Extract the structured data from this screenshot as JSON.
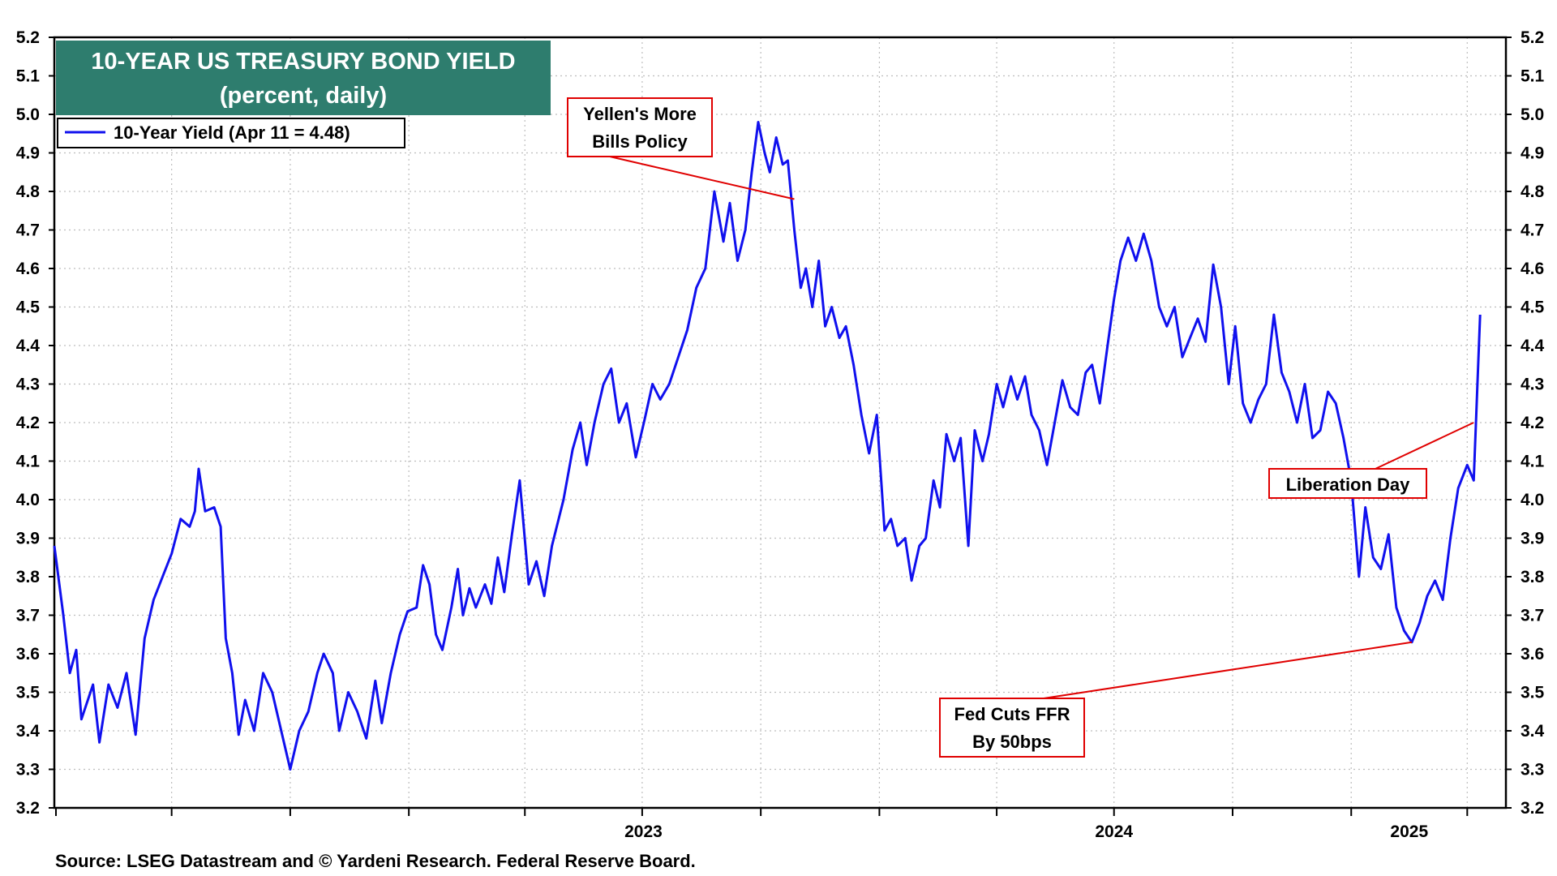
{
  "title": "10-YEAR US TREASURY BOND YIELD",
  "subtitle": "(percent, daily)",
  "source": "Source: LSEG Datastream and © Yardeni Research. Federal Reserve Board.",
  "colors": {
    "line": "#1010ee",
    "title_bg": "#2e7d6e",
    "annotation_border": "#e00000",
    "grid": "#bdbdbd"
  },
  "chart_data": {
    "type": "line",
    "ylim": [
      3.2,
      5.2
    ],
    "yticks": [
      "3.2",
      "3.3",
      "3.4",
      "3.5",
      "3.6",
      "3.7",
      "3.8",
      "3.9",
      "4.0",
      "4.1",
      "4.2",
      "4.3",
      "4.4",
      "4.5",
      "4.6",
      "4.7",
      "4.8",
      "4.9",
      "5.0",
      "5.1",
      "5.2"
    ],
    "xlim": [
      "2022-04-01",
      "2025-05-01"
    ],
    "quarter_gridlines": [
      "2022-07-01",
      "2022-10-01",
      "2023-01-01",
      "2023-04-01",
      "2023-07-01",
      "2023-10-01",
      "2024-01-01",
      "2024-04-01",
      "2024-07-01",
      "2024-10-01",
      "2025-01-01",
      "2025-04-01"
    ],
    "year_labels": [
      {
        "label": "2023",
        "date": "2023-01-01"
      },
      {
        "label": "2024",
        "date": "2024-01-01"
      },
      {
        "label": "2025",
        "date": "2025-01-01"
      }
    ],
    "legend": "top-left",
    "series": [
      {
        "name": "10-Year Yield (Apr 11 = 4.48)",
        "points": [
          [
            "2022-04-01",
            3.88
          ],
          [
            "2022-04-08",
            3.7
          ],
          [
            "2022-04-13",
            3.55
          ],
          [
            "2022-04-18",
            3.61
          ],
          [
            "2022-04-22",
            3.43
          ],
          [
            "2022-05-01",
            3.52
          ],
          [
            "2022-05-06",
            3.37
          ],
          [
            "2022-05-13",
            3.52
          ],
          [
            "2022-05-20",
            3.46
          ],
          [
            "2022-05-27",
            3.55
          ],
          [
            "2022-06-03",
            3.39
          ],
          [
            "2022-06-10",
            3.64
          ],
          [
            "2022-06-17",
            3.74
          ],
          [
            "2022-06-24",
            3.8
          ],
          [
            "2022-07-01",
            3.86
          ],
          [
            "2022-07-08",
            3.95
          ],
          [
            "2022-07-15",
            3.93
          ],
          [
            "2022-07-19",
            3.97
          ],
          [
            "2022-07-22",
            4.08
          ],
          [
            "2022-07-27",
            3.97
          ],
          [
            "2022-08-03",
            3.98
          ],
          [
            "2022-08-08",
            3.93
          ],
          [
            "2022-08-12",
            3.64
          ],
          [
            "2022-08-17",
            3.55
          ],
          [
            "2022-08-22",
            3.39
          ],
          [
            "2022-08-27",
            3.48
          ],
          [
            "2022-09-03",
            3.4
          ],
          [
            "2022-09-10",
            3.55
          ],
          [
            "2022-09-17",
            3.5
          ],
          [
            "2022-09-24",
            3.4
          ],
          [
            "2022-10-01",
            3.3
          ],
          [
            "2022-10-08",
            3.4
          ],
          [
            "2022-10-15",
            3.45
          ],
          [
            "2022-10-22",
            3.55
          ],
          [
            "2022-10-27",
            3.6
          ],
          [
            "2022-11-03",
            3.55
          ],
          [
            "2022-11-08",
            3.4
          ],
          [
            "2022-11-15",
            3.5
          ],
          [
            "2022-11-22",
            3.45
          ],
          [
            "2022-11-29",
            3.38
          ],
          [
            "2022-12-06",
            3.53
          ],
          [
            "2022-12-11",
            3.42
          ],
          [
            "2022-12-18",
            3.55
          ],
          [
            "2022-12-25",
            3.65
          ],
          [
            "2022-12-31",
            3.71
          ],
          [
            "2023-01-07",
            3.72
          ],
          [
            "2023-01-12",
            3.83
          ],
          [
            "2023-01-17",
            3.78
          ],
          [
            "2023-01-22",
            3.65
          ],
          [
            "2023-01-27",
            3.61
          ],
          [
            "2023-02-03",
            3.72
          ],
          [
            "2023-02-08",
            3.82
          ],
          [
            "2023-02-12",
            3.7
          ],
          [
            "2023-02-17",
            3.77
          ],
          [
            "2023-02-22",
            3.72
          ],
          [
            "2023-03-01",
            3.78
          ],
          [
            "2023-03-06",
            3.73
          ],
          [
            "2023-03-11",
            3.85
          ],
          [
            "2023-03-16",
            3.76
          ],
          [
            "2023-03-22",
            3.91
          ],
          [
            "2023-03-28",
            4.05
          ],
          [
            "2023-04-04",
            3.78
          ],
          [
            "2023-04-10",
            3.84
          ],
          [
            "2023-04-16",
            3.75
          ],
          [
            "2023-04-22",
            3.88
          ],
          [
            "2023-05-01",
            4.0
          ],
          [
            "2023-05-08",
            4.13
          ],
          [
            "2023-05-14",
            4.2
          ],
          [
            "2023-05-19",
            4.09
          ],
          [
            "2023-05-25",
            4.2
          ],
          [
            "2023-06-01",
            4.3
          ],
          [
            "2023-06-07",
            4.34
          ],
          [
            "2023-06-13",
            4.2
          ],
          [
            "2023-06-19",
            4.25
          ],
          [
            "2023-06-26",
            4.11
          ],
          [
            "2023-07-03",
            4.21
          ],
          [
            "2023-07-09",
            4.3
          ],
          [
            "2023-07-15",
            4.26
          ],
          [
            "2023-07-22",
            4.3
          ],
          [
            "2023-07-29",
            4.37
          ],
          [
            "2023-08-05",
            4.44
          ],
          [
            "2023-08-12",
            4.55
          ],
          [
            "2023-08-19",
            4.6
          ],
          [
            "2023-08-26",
            4.8
          ],
          [
            "2023-09-02",
            4.67
          ],
          [
            "2023-09-07",
            4.77
          ],
          [
            "2023-09-13",
            4.62
          ],
          [
            "2023-09-19",
            4.7
          ],
          [
            "2023-09-24",
            4.85
          ],
          [
            "2023-09-29",
            4.98
          ],
          [
            "2023-10-04",
            4.9
          ],
          [
            "2023-10-08",
            4.85
          ],
          [
            "2023-10-13",
            4.94
          ],
          [
            "2023-10-18",
            4.87
          ],
          [
            "2023-10-22",
            4.88
          ],
          [
            "2023-10-27",
            4.7
          ],
          [
            "2023-11-01",
            4.55
          ],
          [
            "2023-11-05",
            4.6
          ],
          [
            "2023-11-10",
            4.5
          ],
          [
            "2023-11-15",
            4.62
          ],
          [
            "2023-11-20",
            4.45
          ],
          [
            "2023-11-25",
            4.5
          ],
          [
            "2023-12-01",
            4.42
          ],
          [
            "2023-12-06",
            4.45
          ],
          [
            "2023-12-12",
            4.35
          ],
          [
            "2023-12-18",
            4.22
          ],
          [
            "2023-12-24",
            4.12
          ],
          [
            "2023-12-30",
            4.22
          ],
          [
            "2024-01-05",
            3.92
          ],
          [
            "2024-01-10",
            3.95
          ],
          [
            "2024-01-15",
            3.88
          ],
          [
            "2024-01-21",
            3.9
          ],
          [
            "2024-01-26",
            3.79
          ],
          [
            "2024-02-01",
            3.88
          ],
          [
            "2024-02-06",
            3.9
          ],
          [
            "2024-02-12",
            4.05
          ],
          [
            "2024-02-17",
            3.98
          ],
          [
            "2024-02-22",
            4.17
          ],
          [
            "2024-02-28",
            4.1
          ],
          [
            "2024-03-04",
            4.16
          ],
          [
            "2024-03-10",
            3.88
          ],
          [
            "2024-03-15",
            4.18
          ],
          [
            "2024-03-21",
            4.1
          ],
          [
            "2024-03-26",
            4.17
          ],
          [
            "2024-04-01",
            4.3
          ],
          [
            "2024-04-06",
            4.24
          ],
          [
            "2024-04-12",
            4.32
          ],
          [
            "2024-04-17",
            4.26
          ],
          [
            "2024-04-23",
            4.32
          ],
          [
            "2024-04-28",
            4.22
          ],
          [
            "2024-05-04",
            4.18
          ],
          [
            "2024-05-10",
            4.09
          ],
          [
            "2024-05-16",
            4.2
          ],
          [
            "2024-05-22",
            4.31
          ],
          [
            "2024-05-28",
            4.24
          ],
          [
            "2024-06-03",
            4.22
          ],
          [
            "2024-06-09",
            4.33
          ],
          [
            "2024-06-14",
            4.35
          ],
          [
            "2024-06-20",
            4.25
          ],
          [
            "2024-06-26",
            4.4
          ],
          [
            "2024-07-01",
            4.52
          ],
          [
            "2024-07-06",
            4.62
          ],
          [
            "2024-07-12",
            4.68
          ],
          [
            "2024-07-18",
            4.62
          ],
          [
            "2024-07-24",
            4.69
          ],
          [
            "2024-07-30",
            4.62
          ],
          [
            "2024-08-05",
            4.5
          ],
          [
            "2024-08-11",
            4.45
          ],
          [
            "2024-08-17",
            4.5
          ],
          [
            "2024-08-23",
            4.37
          ],
          [
            "2024-08-29",
            4.42
          ],
          [
            "2024-09-04",
            4.47
          ],
          [
            "2024-09-10",
            4.41
          ],
          [
            "2024-09-16",
            4.61
          ],
          [
            "2024-09-22",
            4.5
          ],
          [
            "2024-09-28",
            4.3
          ],
          [
            "2024-10-03",
            4.45
          ],
          [
            "2024-10-09",
            4.25
          ],
          [
            "2024-10-15",
            4.2
          ],
          [
            "2024-10-21",
            4.26
          ],
          [
            "2024-10-27",
            4.3
          ],
          [
            "2024-11-02",
            4.48
          ],
          [
            "2024-11-08",
            4.33
          ],
          [
            "2024-11-14",
            4.28
          ],
          [
            "2024-11-20",
            4.2
          ],
          [
            "2024-11-26",
            4.3
          ],
          [
            "2024-12-02",
            4.16
          ],
          [
            "2024-12-08",
            4.18
          ],
          [
            "2024-12-14",
            4.28
          ],
          [
            "2024-12-20",
            4.25
          ],
          [
            "2024-12-26",
            4.16
          ],
          [
            "2025-01-01",
            4.05
          ],
          [
            "2025-01-07",
            3.8
          ],
          [
            "2025-01-12",
            3.98
          ],
          [
            "2025-01-18",
            3.85
          ],
          [
            "2025-01-24",
            3.82
          ],
          [
            "2025-01-30",
            3.91
          ],
          [
            "2025-02-05",
            3.72
          ],
          [
            "2025-02-11",
            3.66
          ],
          [
            "2025-02-17",
            3.63
          ],
          [
            "2025-02-23",
            3.68
          ],
          [
            "2025-03-01",
            3.75
          ],
          [
            "2025-03-07",
            3.79
          ],
          [
            "2025-03-13",
            3.74
          ],
          [
            "2025-03-19",
            3.9
          ],
          [
            "2025-03-25",
            4.03
          ],
          [
            "2025-04-01",
            4.09
          ],
          [
            "2025-04-06",
            4.05
          ],
          [
            "2025-04-11",
            4.48
          ]
        ]
      }
    ],
    "annotations": [
      {
        "text": [
          "Yellen's More",
          "Bills Policy"
        ]
      },
      {
        "text": [
          "Fed Cuts FFR",
          "By 50bps"
        ]
      },
      {
        "text": [
          "Liberation Day"
        ]
      }
    ]
  }
}
